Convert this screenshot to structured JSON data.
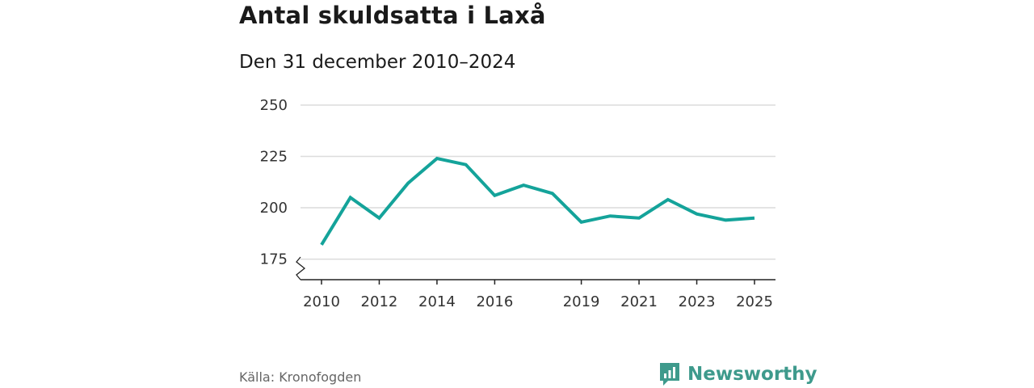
{
  "header": {
    "title": "Antal skuldsatta i Laxå",
    "subtitle": "Den 31 december 2010–2024"
  },
  "footer": {
    "source": "Källa: Kronofogden",
    "brand": "Newsworthy",
    "brand_icon": "bar-chart-logo-icon"
  },
  "colors": {
    "line": "#14a39a",
    "grid": "#dcdcdc",
    "axis": "#222222",
    "brand": "#3e9a8c"
  },
  "chart_data": {
    "type": "line",
    "title": "Antal skuldsatta i Laxå",
    "subtitle": "Den 31 december 2010–2024",
    "xlabel": "",
    "ylabel": "",
    "x_ticks": [
      2010,
      2012,
      2014,
      2016,
      2019,
      2021,
      2023,
      2025
    ],
    "y_ticks": [
      175,
      200,
      225,
      250
    ],
    "xlim": [
      2010,
      2025
    ],
    "ylim": [
      165,
      250
    ],
    "grid": true,
    "y_axis_break": true,
    "series": [
      {
        "name": "Antal skuldsatta",
        "x": [
          2010,
          2011,
          2012,
          2013,
          2014,
          2015,
          2016,
          2017,
          2018,
          2019,
          2020,
          2021,
          2022,
          2023,
          2024,
          2025
        ],
        "values": [
          182,
          205,
          195,
          212,
          224,
          221,
          206,
          211,
          207,
          193,
          196,
          195,
          204,
          197,
          194,
          195
        ]
      }
    ]
  }
}
